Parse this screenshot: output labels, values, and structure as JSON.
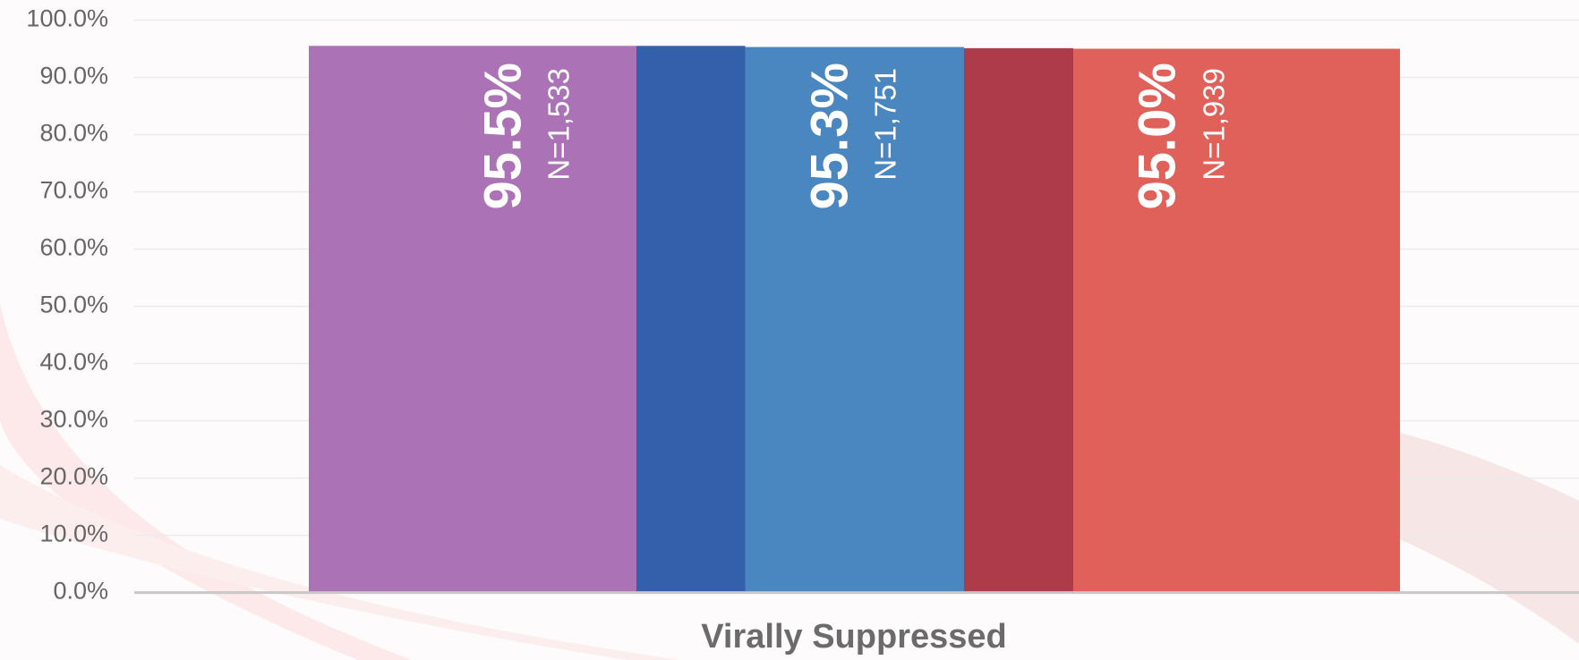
{
  "chart_data": {
    "type": "bar",
    "categories": [
      "Virally Suppressed"
    ],
    "series": [
      {
        "color": "#ab72b5",
        "values": [
          95.5
        ],
        "value_labels": [
          "95.5%"
        ],
        "n_label": "N=1,533"
      },
      {
        "color": "#345fab",
        "values": [
          95.5
        ]
      },
      {
        "color": "#4a86c0",
        "values": [
          95.3
        ],
        "value_labels": [
          "95.3%"
        ],
        "n_label": "N=1,751"
      },
      {
        "color": "#ad3b4a",
        "values": [
          95.1
        ]
      },
      {
        "color": "#e0605a",
        "values": [
          95.0
        ],
        "value_labels": [
          "95.0%"
        ],
        "n_label": "N=1,939"
      }
    ],
    "ylim": [
      0,
      100
    ],
    "yticks": [
      {
        "value": 0,
        "label": "0.0%"
      },
      {
        "value": 10,
        "label": "10.0%"
      },
      {
        "value": 20,
        "label": "20.0%"
      },
      {
        "value": 30,
        "label": "30.0%"
      },
      {
        "value": 40,
        "label": "40.0%"
      },
      {
        "value": 50,
        "label": "50.0%"
      },
      {
        "value": 60,
        "label": "60.0%"
      },
      {
        "value": 70,
        "label": "70.0%"
      },
      {
        "value": 80,
        "label": "80.0%"
      },
      {
        "value": 90,
        "label": "90.0%"
      },
      {
        "value": 100,
        "label": "100.0%"
      }
    ],
    "grid": true
  }
}
